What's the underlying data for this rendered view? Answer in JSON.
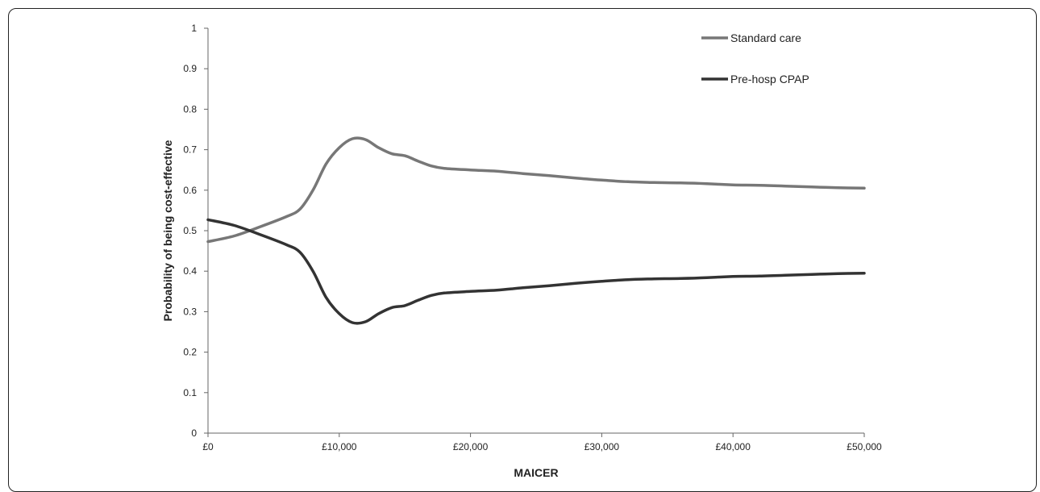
{
  "chart_data": {
    "type": "line",
    "xlabel": "MAICER",
    "ylabel": "Probability of being cost-effective",
    "xlim": [
      0,
      50000
    ],
    "ylim": [
      0,
      1
    ],
    "x_ticks": [
      {
        "value": 0,
        "label": "£0"
      },
      {
        "value": 10000,
        "label": "£10,000"
      },
      {
        "value": 20000,
        "label": "£20,000"
      },
      {
        "value": 30000,
        "label": "£30,000"
      },
      {
        "value": 40000,
        "label": "£40,000"
      },
      {
        "value": 50000,
        "label": "£50,000"
      }
    ],
    "y_ticks": [
      {
        "value": 0,
        "label": "0"
      },
      {
        "value": 0.1,
        "label": "0.1"
      },
      {
        "value": 0.2,
        "label": "0.2"
      },
      {
        "value": 0.3,
        "label": "0.3"
      },
      {
        "value": 0.4,
        "label": "0.4"
      },
      {
        "value": 0.5,
        "label": "0.5"
      },
      {
        "value": 0.6,
        "label": "0.6"
      },
      {
        "value": 0.7,
        "label": "0.7"
      },
      {
        "value": 0.8,
        "label": "0.8"
      },
      {
        "value": 0.9,
        "label": "0.9"
      },
      {
        "value": 1,
        "label": "1"
      }
    ],
    "grid": false,
    "legend_position": "top-right",
    "series": [
      {
        "name": "Standard care",
        "color": "#777777",
        "x": [
          0,
          2000,
          4000,
          6000,
          7000,
          8000,
          9000,
          10000,
          11000,
          12000,
          13000,
          14000,
          15000,
          16000,
          17000,
          18000,
          20000,
          22000,
          24000,
          26000,
          28000,
          30000,
          32000,
          34000,
          36000,
          38000,
          40000,
          42000,
          44000,
          46000,
          48000,
          50000
        ],
        "y": [
          0.473,
          0.487,
          0.51,
          0.535,
          0.553,
          0.6,
          0.665,
          0.705,
          0.727,
          0.725,
          0.705,
          0.69,
          0.685,
          0.672,
          0.66,
          0.654,
          0.65,
          0.647,
          0.641,
          0.636,
          0.63,
          0.625,
          0.621,
          0.619,
          0.618,
          0.616,
          0.613,
          0.612,
          0.61,
          0.608,
          0.606,
          0.605
        ]
      },
      {
        "name": "Pre-hosp CPAP",
        "color": "#333333",
        "x": [
          0,
          2000,
          4000,
          6000,
          7000,
          8000,
          9000,
          10000,
          11000,
          12000,
          13000,
          14000,
          15000,
          16000,
          17000,
          18000,
          20000,
          22000,
          24000,
          26000,
          28000,
          30000,
          32000,
          34000,
          36000,
          38000,
          40000,
          42000,
          44000,
          46000,
          48000,
          50000
        ],
        "y": [
          0.527,
          0.513,
          0.49,
          0.465,
          0.447,
          0.4,
          0.335,
          0.295,
          0.273,
          0.275,
          0.295,
          0.31,
          0.315,
          0.328,
          0.34,
          0.346,
          0.35,
          0.353,
          0.359,
          0.364,
          0.37,
          0.375,
          0.379,
          0.381,
          0.382,
          0.384,
          0.387,
          0.388,
          0.39,
          0.392,
          0.394,
          0.395
        ]
      }
    ]
  }
}
